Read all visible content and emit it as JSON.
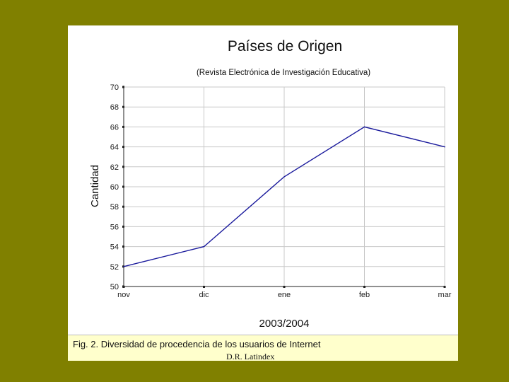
{
  "chart_data": {
    "type": "line",
    "title": "Países de Origen",
    "subtitle": "(Revista Electrónica de Investigación Educativa)",
    "xlabel": "2003/2004",
    "ylabel": "Cantidad",
    "categories": [
      "nov",
      "dic",
      "ene",
      "feb",
      "mar"
    ],
    "series": [
      {
        "values": [
          52,
          54,
          61,
          66,
          64
        ],
        "color": "#1a1a9c"
      }
    ],
    "ylim": [
      50,
      70
    ],
    "yticks": [
      50,
      52,
      54,
      56,
      58,
      60,
      62,
      64,
      66,
      68,
      70
    ],
    "grid": true
  },
  "caption": {
    "text": "Fig. 2. Diversidad de procedencia de los usuarios de Internet",
    "source": "D.R. Latindex"
  },
  "colors": {
    "background": "#808000",
    "caption_background": "#ffffcc",
    "line": "#1a1a9c",
    "grid": "#c8c8c8"
  }
}
